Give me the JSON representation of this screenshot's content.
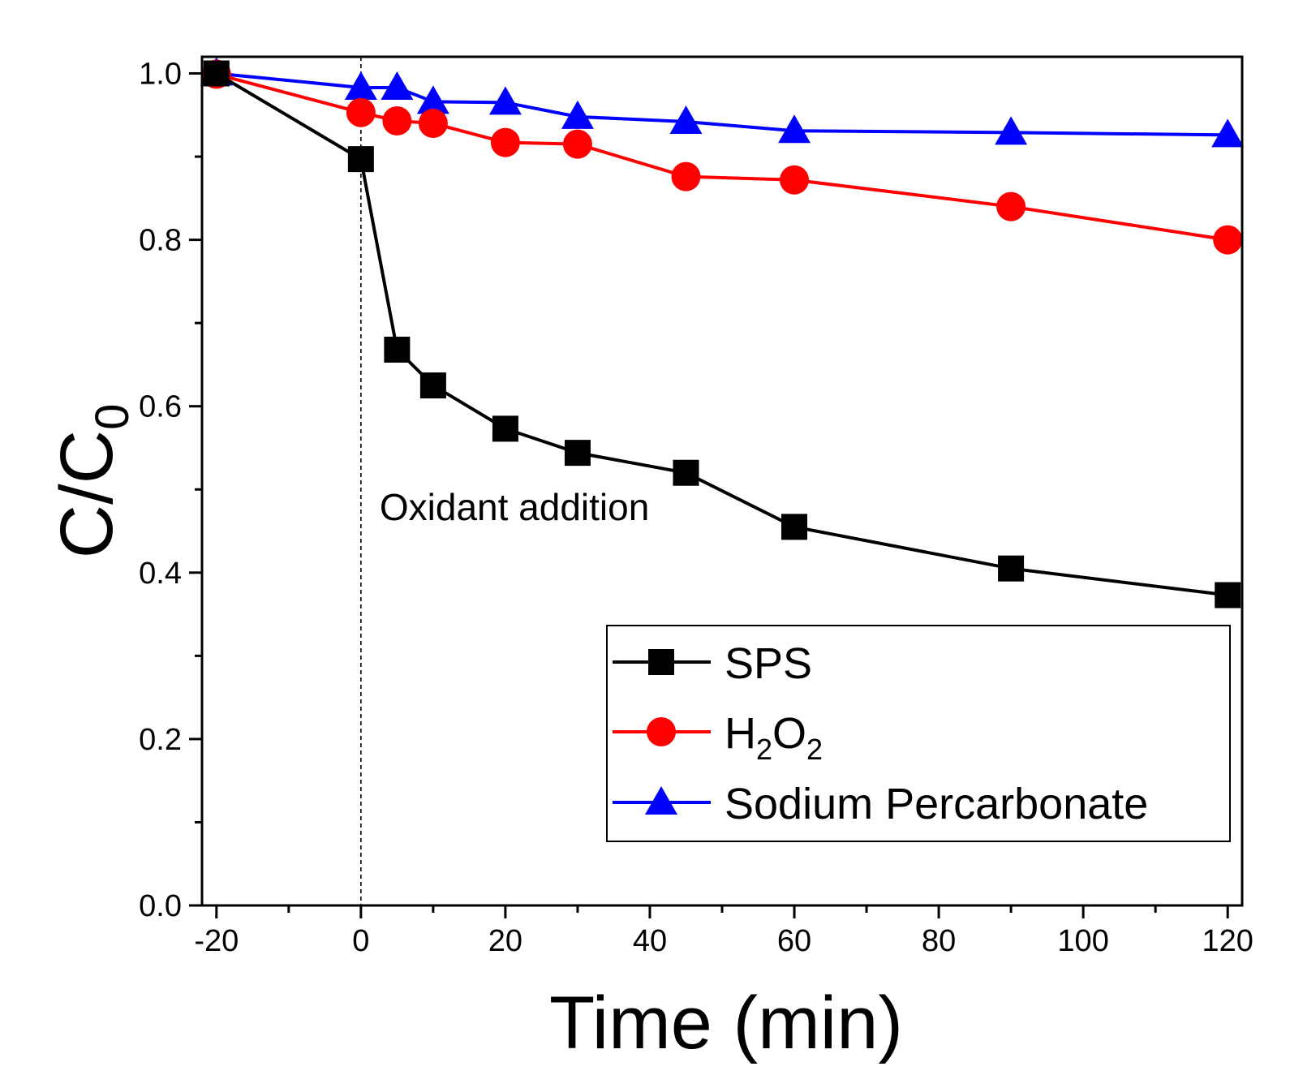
{
  "chart_data": {
    "type": "line",
    "title": "",
    "xlabel": "Time (min)",
    "ylabel": {
      "main": "C/C",
      "sub": "0"
    },
    "xlim": [
      -22,
      122
    ],
    "ylim": [
      0.0,
      1.02
    ],
    "x_ticks": [
      -20,
      0,
      20,
      40,
      60,
      80,
      100,
      120
    ],
    "x_tick_labels": [
      "-20",
      "0",
      "20",
      "40",
      "60",
      "80",
      "100",
      "120"
    ],
    "x_minor_ticks": [
      -10,
      10,
      30,
      50,
      70,
      90,
      110
    ],
    "y_ticks": [
      0.0,
      0.2,
      0.4,
      0.6,
      0.8,
      1.0
    ],
    "y_tick_labels": [
      "0.0",
      "0.2",
      "0.4",
      "0.6",
      "0.8",
      "1.0"
    ],
    "y_minor_ticks": [
      0.1,
      0.3,
      0.5,
      0.7,
      0.9
    ],
    "grid": false,
    "x": [
      -20,
      0,
      5,
      10,
      20,
      30,
      45,
      60,
      90,
      120
    ],
    "series": [
      {
        "name": "SPS",
        "color": "#000000",
        "marker": "square",
        "values": [
          1.0,
          0.897,
          0.668,
          0.625,
          0.573,
          0.544,
          0.52,
          0.455,
          0.405,
          0.373
        ]
      },
      {
        "name": "H2O2",
        "label_parts": [
          "H",
          "2",
          "O",
          "2"
        ],
        "color": "#ff0000",
        "marker": "circle",
        "values": [
          0.999,
          0.953,
          0.943,
          0.94,
          0.917,
          0.915,
          0.876,
          0.872,
          0.84,
          0.8
        ]
      },
      {
        "name": "Sodium Percarbonate",
        "color": "#0000ff",
        "marker": "triangle",
        "values": [
          1.0,
          0.983,
          0.983,
          0.966,
          0.965,
          0.948,
          0.942,
          0.931,
          0.929,
          0.926
        ]
      }
    ],
    "annotations": [
      {
        "text": "Oxidant addition",
        "x_line": 0
      }
    ],
    "legend": {
      "position": "bottom-right"
    }
  }
}
